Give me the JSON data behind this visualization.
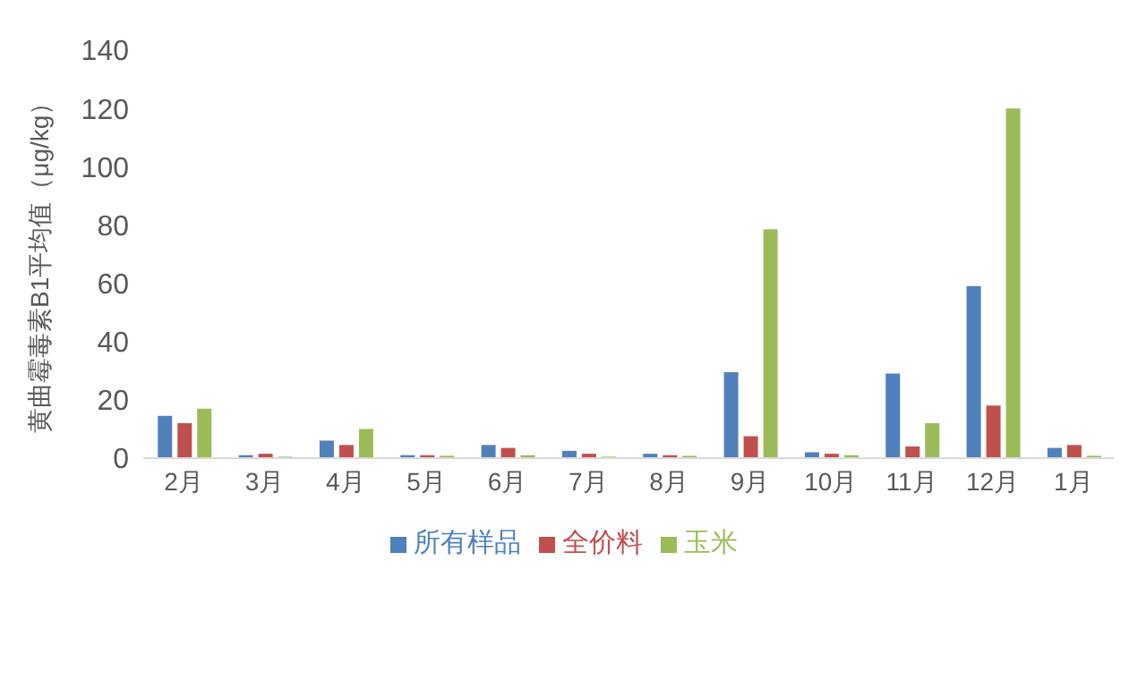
{
  "chart_data": {
    "type": "bar",
    "ylabel": "黄曲霉毒素B1平均值（μg/kg）",
    "categories": [
      "2月",
      "3月",
      "4月",
      "5月",
      "6月",
      "7月",
      "8月",
      "9月",
      "10月",
      "11月",
      "12月",
      "1月"
    ],
    "series": [
      {
        "name": "所有样品",
        "color": "#4f81bd",
        "values": [
          14.5,
          1,
          6,
          1,
          4.5,
          2.5,
          1.5,
          29.5,
          2,
          29,
          59,
          3.5
        ]
      },
      {
        "name": "全价料",
        "color": "#c0504d",
        "values": [
          12,
          1.5,
          4.5,
          1,
          3.5,
          1.5,
          1,
          7.5,
          1.5,
          4,
          18,
          4.5
        ]
      },
      {
        "name": "玉米",
        "color": "#9bbb59",
        "values": [
          17,
          0.5,
          10,
          0.8,
          1,
          0.5,
          0.8,
          78.5,
          1,
          12,
          120,
          0.8
        ]
      }
    ],
    "ylim": [
      0,
      140
    ],
    "yticks": [
      0,
      20,
      40,
      60,
      80,
      100,
      120,
      140
    ],
    "grid": false,
    "legend": "bottom"
  }
}
